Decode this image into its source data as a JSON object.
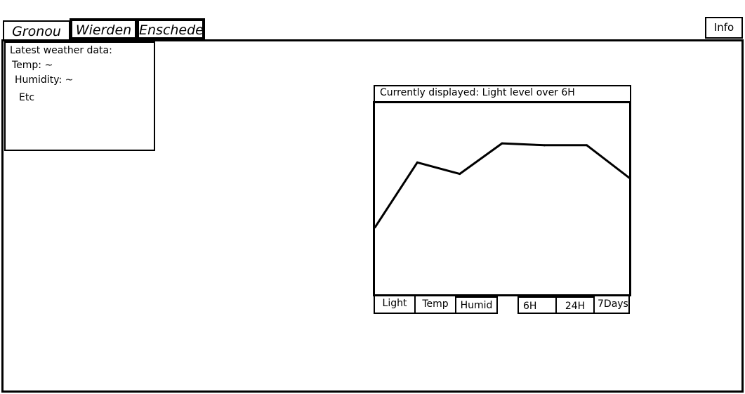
{
  "tabs": [
    {
      "label": "Gronou"
    },
    {
      "label": "Wierden"
    },
    {
      "label": "Enschede"
    }
  ],
  "info_label": "Info",
  "weather": {
    "heading": "Latest weather data:",
    "temp": "Temp: ~",
    "humidity": "Humidity: ~",
    "etc": "Etc"
  },
  "chart_panel": {
    "title": "Currently displayed: Light level over 6H",
    "metric_buttons": [
      "Light",
      "Temp",
      "Humid"
    ],
    "range_buttons": [
      "6H",
      "24H",
      "7Days"
    ]
  },
  "chart_data": {
    "type": "line",
    "title": "",
    "xlabel": "",
    "ylabel": "",
    "grid": false,
    "x": [
      0,
      1,
      2,
      3,
      4,
      5,
      6
    ],
    "y": [
      35,
      69,
      63,
      79,
      78,
      78,
      61
    ],
    "xlim": [
      0,
      6
    ],
    "ylim": [
      0,
      100
    ],
    "series_color": "#000000"
  }
}
